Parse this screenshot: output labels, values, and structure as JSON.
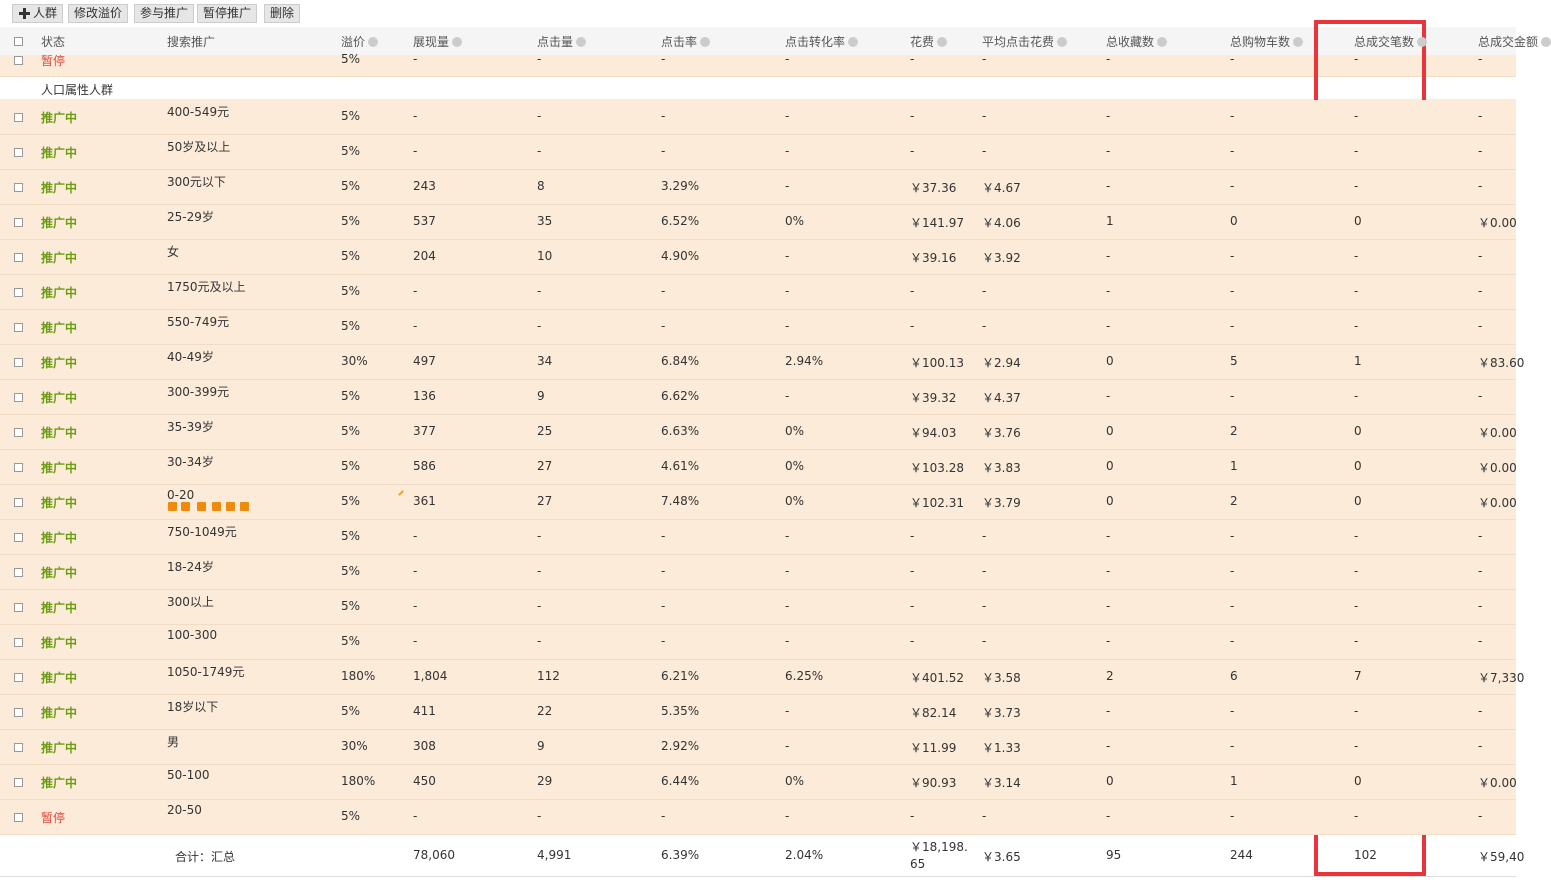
{
  "toolbar": [
    "人群",
    "修改溢价",
    "参与推广",
    "暂停推广",
    "删除"
  ],
  "columns": [
    "状态",
    "搜索推广",
    "溢价",
    "展现量",
    "点击量",
    "点击率",
    "点击转化率",
    "花费",
    "平均点击花费",
    "总收藏数",
    "总购物车数",
    "总成交笔数",
    "总成交金额"
  ],
  "partial_row": {
    "status": "暂停",
    "cells": [
      "5%",
      "-",
      "-",
      "-",
      "-",
      "-",
      "-",
      "-",
      "-",
      "-",
      "-"
    ]
  },
  "section": "人口属性人群",
  "rows": [
    {
      "status": "推广中",
      "name": "400-549元",
      "cells": [
        "5%",
        "-",
        "-",
        "-",
        "-",
        "-",
        "-",
        "-",
        "-",
        "-",
        "-"
      ]
    },
    {
      "status": "推广中",
      "name": "50岁及以上",
      "cells": [
        "5%",
        "-",
        "-",
        "-",
        "-",
        "-",
        "-",
        "-",
        "-",
        "-",
        "-"
      ]
    },
    {
      "status": "推广中",
      "name": "300元以下",
      "cells": [
        "5%",
        "243",
        "8",
        "3.29%",
        "-",
        "￥37.36",
        "￥4.67",
        "-",
        "-",
        "-",
        "-"
      ]
    },
    {
      "status": "推广中",
      "name": "25-29岁",
      "cells": [
        "5%",
        "537",
        "35",
        "6.52%",
        "0%",
        "￥141.97",
        "￥4.06",
        "1",
        "0",
        "0",
        "￥0.00"
      ]
    },
    {
      "status": "推广中",
      "name": "女",
      "cells": [
        "5%",
        "204",
        "10",
        "4.90%",
        "-",
        "￥39.16",
        "￥3.92",
        "-",
        "-",
        "-",
        "-"
      ]
    },
    {
      "status": "推广中",
      "name": "1750元及以上",
      "cells": [
        "5%",
        "-",
        "-",
        "-",
        "-",
        "-",
        "-",
        "-",
        "-",
        "-",
        "-"
      ]
    },
    {
      "status": "推广中",
      "name": "550-749元",
      "cells": [
        "5%",
        "-",
        "-",
        "-",
        "-",
        "-",
        "-",
        "-",
        "-",
        "-",
        "-"
      ]
    },
    {
      "status": "推广中",
      "name": "40-49岁",
      "cells": [
        "30%",
        "497",
        "34",
        "6.84%",
        "2.94%",
        "￥100.13",
        "￥2.94",
        "0",
        "5",
        "1",
        "￥83.60"
      ]
    },
    {
      "status": "推广中",
      "name": "300-399元",
      "cells": [
        "5%",
        "136",
        "9",
        "6.62%",
        "-",
        "￥39.32",
        "￥4.37",
        "-",
        "-",
        "-",
        "-"
      ]
    },
    {
      "status": "推广中",
      "name": "35-39岁",
      "cells": [
        "5%",
        "377",
        "25",
        "6.63%",
        "0%",
        "￥94.03",
        "￥3.76",
        "0",
        "2",
        "0",
        "￥0.00"
      ]
    },
    {
      "status": "推广中",
      "name": "30-34岁",
      "cells": [
        "5%",
        "586",
        "27",
        "4.61%",
        "0%",
        "￥103.28",
        "￥3.83",
        "0",
        "1",
        "0",
        "￥0.00"
      ]
    },
    {
      "status": "推广中",
      "name": "0-20",
      "cells": [
        "5%",
        "361",
        "27",
        "7.48%",
        "0%",
        "￥102.31",
        "￥3.79",
        "0",
        "2",
        "0",
        "￥0.00"
      ]
    },
    {
      "status": "推广中",
      "name": "750-1049元",
      "cells": [
        "5%",
        "-",
        "-",
        "-",
        "-",
        "-",
        "-",
        "-",
        "-",
        "-",
        "-"
      ]
    },
    {
      "status": "推广中",
      "name": "18-24岁",
      "cells": [
        "5%",
        "-",
        "-",
        "-",
        "-",
        "-",
        "-",
        "-",
        "-",
        "-",
        "-"
      ]
    },
    {
      "status": "推广中",
      "name": "300以上",
      "cells": [
        "5%",
        "-",
        "-",
        "-",
        "-",
        "-",
        "-",
        "-",
        "-",
        "-",
        "-"
      ]
    },
    {
      "status": "推广中",
      "name": "100-300",
      "cells": [
        "5%",
        "-",
        "-",
        "-",
        "-",
        "-",
        "-",
        "-",
        "-",
        "-",
        "-"
      ]
    },
    {
      "status": "推广中",
      "name": "1050-1749元",
      "cells": [
        "180%",
        "1,804",
        "112",
        "6.21%",
        "6.25%",
        "￥401.52",
        "￥3.58",
        "2",
        "6",
        "7",
        "￥7,330"
      ]
    },
    {
      "status": "推广中",
      "name": "18岁以下",
      "cells": [
        "5%",
        "411",
        "22",
        "5.35%",
        "-",
        "￥82.14",
        "￥3.73",
        "-",
        "-",
        "-",
        "-"
      ]
    },
    {
      "status": "推广中",
      "name": "男",
      "cells": [
        "30%",
        "308",
        "9",
        "2.92%",
        "-",
        "￥11.99",
        "￥1.33",
        "-",
        "-",
        "-",
        "-"
      ]
    },
    {
      "status": "推广中",
      "name": "50-100",
      "cells": [
        "180%",
        "450",
        "29",
        "6.44%",
        "0%",
        "￥90.93",
        "￥3.14",
        "0",
        "1",
        "0",
        "￥0.00"
      ]
    },
    {
      "status": "暂停",
      "name": "20-50",
      "cells": [
        "5%",
        "-",
        "-",
        "-",
        "-",
        "-",
        "-",
        "-",
        "-",
        "-",
        "-"
      ]
    }
  ],
  "total": {
    "label": "合计：汇总",
    "cells": [
      "78,060",
      "4,991",
      "6.39%",
      "2.04%",
      "￥18,198.65",
      "￥3.65",
      "95",
      "244",
      "102",
      "￥59,40"
    ]
  }
}
